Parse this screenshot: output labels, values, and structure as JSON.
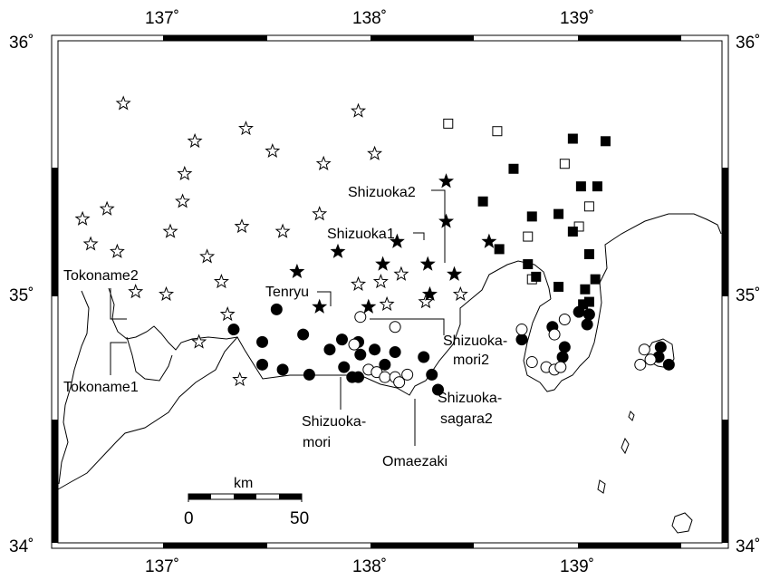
{
  "map": {
    "extent": {
      "lon_min": 136.5,
      "lon_max": 139.75,
      "lat_min": 34.0,
      "lat_max": 36.0
    },
    "lon_ticks": [
      {
        "value": 137,
        "label": "137˚"
      },
      {
        "value": 138,
        "label": "138˚"
      },
      {
        "value": 139,
        "label": "139˚"
      }
    ],
    "lat_ticks": [
      {
        "value": 36,
        "label": "36˚"
      },
      {
        "value": 35,
        "label": "35˚"
      },
      {
        "value": 34,
        "label": "34˚"
      }
    ],
    "scale_bar": {
      "unit_label": "km",
      "start_label": "0",
      "end_label": "50",
      "length_km": 50
    },
    "station_labels": [
      {
        "id": "tokoname2",
        "lines": [
          "Tokoname2"
        ]
      },
      {
        "id": "tokoname1",
        "lines": [
          "Tokoname1"
        ]
      },
      {
        "id": "tenryu",
        "lines": [
          "Tenryu"
        ]
      },
      {
        "id": "shizuoka2",
        "lines": [
          "Shizuoka2"
        ]
      },
      {
        "id": "shizuoka1",
        "lines": [
          "Shizuoka1"
        ]
      },
      {
        "id": "shizuoka-mori2",
        "lines": [
          "Shizuoka-",
          "mori2"
        ]
      },
      {
        "id": "shizuoka-sagara2",
        "lines": [
          "Shizuoka-",
          "sagara2"
        ]
      },
      {
        "id": "shizuoka-mori",
        "lines": [
          "Shizuoka-",
          "mori"
        ]
      },
      {
        "id": "omaezaki",
        "lines": [
          "Omaezaki"
        ]
      }
    ],
    "station_groups": {
      "open_star": [
        [
          136.82,
          35.75
        ],
        [
          137.17,
          35.6
        ],
        [
          137.42,
          35.65
        ],
        [
          137.55,
          35.56
        ],
        [
          137.97,
          35.72
        ],
        [
          138.05,
          35.55
        ],
        [
          137.12,
          35.47
        ],
        [
          137.8,
          35.51
        ],
        [
          136.62,
          35.29
        ],
        [
          136.74,
          35.33
        ],
        [
          137.11,
          35.36
        ],
        [
          136.66,
          35.19
        ],
        [
          136.79,
          35.16
        ],
        [
          137.05,
          35.24
        ],
        [
          137.4,
          35.26
        ],
        [
          137.6,
          35.24
        ],
        [
          137.78,
          35.31
        ],
        [
          137.23,
          35.14
        ],
        [
          137.3,
          35.04
        ],
        [
          136.88,
          35.0
        ],
        [
          137.03,
          34.99
        ],
        [
          137.19,
          34.8
        ],
        [
          137.33,
          34.91
        ],
        [
          137.39,
          34.65
        ],
        [
          137.97,
          35.03
        ],
        [
          138.08,
          35.04
        ],
        [
          138.11,
          34.95
        ],
        [
          138.18,
          35.07
        ],
        [
          138.3,
          34.96
        ],
        [
          138.47,
          34.99
        ]
      ],
      "filled_star": [
        [
          138.4,
          35.44
        ],
        [
          138.4,
          35.28
        ],
        [
          138.16,
          35.2
        ],
        [
          138.61,
          35.2
        ],
        [
          137.67,
          35.08
        ],
        [
          137.78,
          34.94
        ],
        [
          137.87,
          35.16
        ],
        [
          138.09,
          35.11
        ],
        [
          138.31,
          35.11
        ],
        [
          138.44,
          35.07
        ],
        [
          138.32,
          34.99
        ],
        [
          138.02,
          34.94
        ]
      ],
      "open_square": [
        [
          138.41,
          35.67
        ],
        [
          138.65,
          35.64
        ],
        [
          138.98,
          35.51
        ],
        [
          139.1,
          35.34
        ],
        [
          139.05,
          35.26
        ],
        [
          138.8,
          35.22
        ],
        [
          138.82,
          35.05
        ]
      ],
      "filled_square": [
        [
          139.02,
          35.61
        ],
        [
          139.18,
          35.6
        ],
        [
          138.73,
          35.49
        ],
        [
          139.06,
          35.42
        ],
        [
          139.14,
          35.42
        ],
        [
          138.58,
          35.36
        ],
        [
          138.82,
          35.3
        ],
        [
          138.95,
          35.31
        ],
        [
          139.02,
          35.24
        ],
        [
          138.66,
          35.17
        ],
        [
          139.1,
          35.15
        ],
        [
          138.8,
          35.11
        ],
        [
          138.84,
          35.06
        ],
        [
          139.13,
          35.05
        ],
        [
          138.95,
          35.02
        ],
        [
          139.08,
          35.01
        ],
        [
          139.1,
          34.96
        ],
        [
          139.07,
          34.95
        ]
      ],
      "filled_circle": [
        [
          137.36,
          34.85
        ],
        [
          137.57,
          34.93
        ],
        [
          137.5,
          34.8
        ],
        [
          137.7,
          34.83
        ],
        [
          137.5,
          34.71
        ],
        [
          137.6,
          34.69
        ],
        [
          137.9,
          34.7
        ],
        [
          137.94,
          34.66
        ],
        [
          137.98,
          34.75
        ],
        [
          137.73,
          34.67
        ],
        [
          137.97,
          34.8
        ],
        [
          137.89,
          34.81
        ],
        [
          137.83,
          34.77
        ],
        [
          137.97,
          34.66
        ],
        [
          138.05,
          34.77
        ],
        [
          138.1,
          34.71
        ],
        [
          138.15,
          34.76
        ],
        [
          138.29,
          34.74
        ],
        [
          138.33,
          34.67
        ],
        [
          138.36,
          34.61
        ],
        [
          138.92,
          34.86
        ],
        [
          139.05,
          34.92
        ],
        [
          139.1,
          34.91
        ],
        [
          139.09,
          34.87
        ],
        [
          138.98,
          34.78
        ],
        [
          138.77,
          34.81
        ],
        [
          138.97,
          34.74
        ],
        [
          139.45,
          34.78
        ],
        [
          139.44,
          34.74
        ],
        [
          139.49,
          34.71
        ]
      ],
      "open_circle": [
        [
          137.98,
          34.9
        ],
        [
          138.15,
          34.86
        ],
        [
          137.95,
          34.79
        ],
        [
          138.02,
          34.69
        ],
        [
          138.06,
          34.68
        ],
        [
          138.1,
          34.66
        ],
        [
          138.15,
          34.66
        ],
        [
          138.17,
          34.64
        ],
        [
          138.21,
          34.67
        ],
        [
          138.98,
          34.89
        ],
        [
          138.77,
          34.85
        ],
        [
          138.93,
          34.83
        ],
        [
          138.82,
          34.72
        ],
        [
          138.89,
          34.7
        ],
        [
          138.93,
          34.69
        ],
        [
          138.96,
          34.7
        ],
        [
          139.37,
          34.77
        ],
        [
          139.35,
          34.71
        ],
        [
          139.4,
          34.73
        ]
      ]
    }
  }
}
